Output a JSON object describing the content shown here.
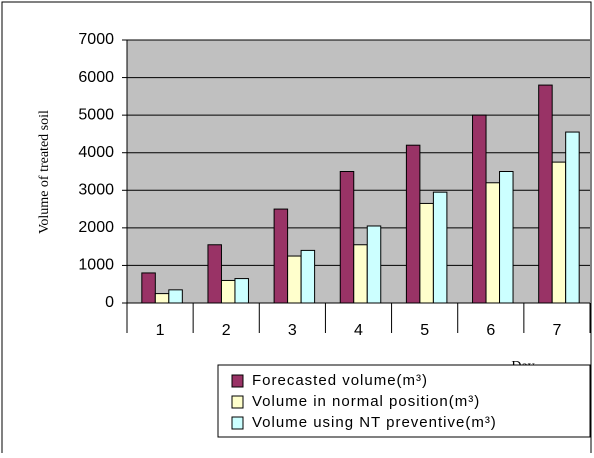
{
  "chart_data": {
    "type": "bar",
    "y_label": "Volume of treated soil",
    "x_label": "Day",
    "categories": [
      "1",
      "2",
      "3",
      "4",
      "5",
      "6",
      "7"
    ],
    "series": [
      {
        "name": "Forecasted volume(m³)",
        "color": "#993366",
        "values": [
          800,
          1550,
          2500,
          3500,
          4200,
          5000,
          5800
        ]
      },
      {
        "name": "Volume in normal position(m³)",
        "color": "#ffffcc",
        "values": [
          250,
          600,
          1250,
          1550,
          2650,
          3200,
          3750
        ]
      },
      {
        "name": "Volume using NT preventive(m³)",
        "color": "#ccffff",
        "values": [
          350,
          650,
          1400,
          2050,
          2950,
          3500,
          4550
        ]
      }
    ],
    "ylim": [
      0,
      7000
    ],
    "yticks": [
      0,
      1000,
      2000,
      3000,
      4000,
      5000,
      6000,
      7000
    ],
    "grid": true,
    "legend": "bottom"
  }
}
